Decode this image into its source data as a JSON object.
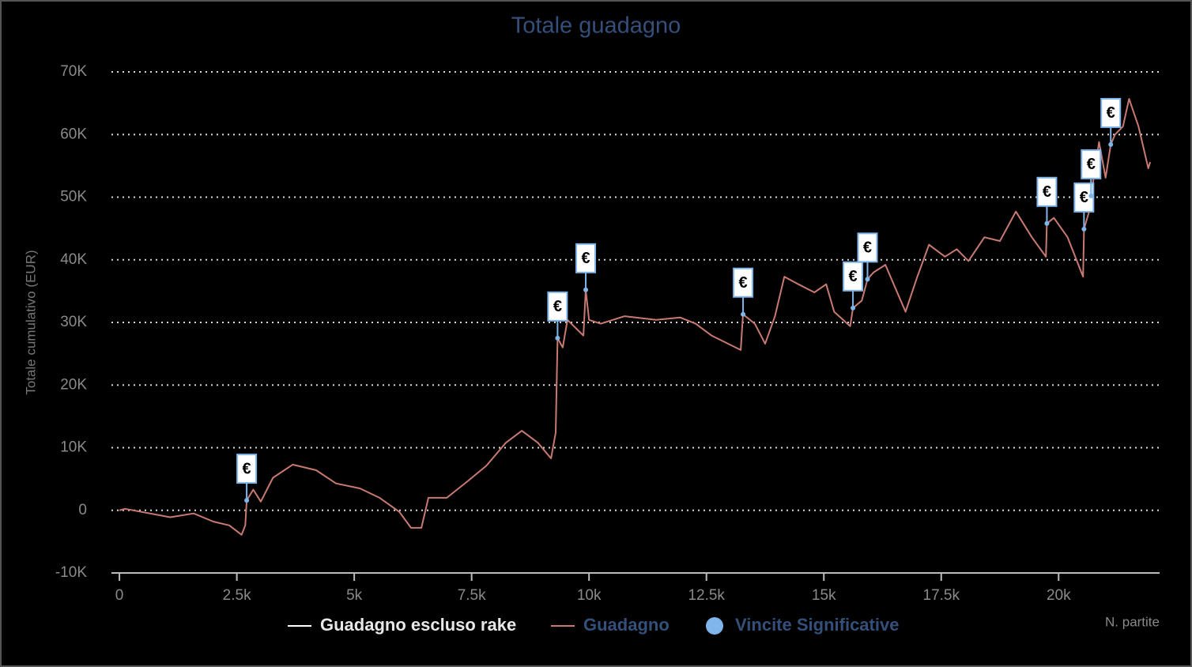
{
  "chart_data": {
    "type": "line",
    "title": "Totale guadagno",
    "y_label": "Totale cumulativo (EUR)",
    "x_label": "N. partite",
    "xlim": [
      -170,
      22150
    ],
    "ylim": [
      -10000,
      70000
    ],
    "xticks": [
      0,
      {
        "value": 2500,
        "label": "2.5k"
      },
      {
        "value": 5000,
        "label": "5k"
      },
      {
        "value": 7500,
        "label": "7.5k"
      },
      {
        "value": 10000,
        "label": "10k"
      },
      {
        "value": 12500,
        "label": "12.5k"
      },
      {
        "value": 15000,
        "label": "15k"
      },
      {
        "value": 17500,
        "label": "17.5k"
      },
      {
        "value": 20000,
        "label": "20k"
      }
    ],
    "yticks": [
      {
        "value": -10000,
        "label": "-10K"
      },
      0,
      {
        "value": 10000,
        "label": "10K"
      },
      {
        "value": 20000,
        "label": "20K"
      },
      {
        "value": 30000,
        "label": "30K"
      },
      {
        "value": 40000,
        "label": "40K"
      },
      {
        "value": 50000,
        "label": "50K"
      },
      {
        "value": 60000,
        "label": "60K"
      },
      {
        "value": 70000,
        "label": "70K"
      }
    ],
    "grid": true,
    "series": [
      {
        "name": "Guadagno escluso rake",
        "color": "#ffffff",
        "hidden": true
      },
      {
        "name": "Guadagno",
        "color": "#c87a72",
        "x": [
          0,
          120,
          1080,
          1580,
          2000,
          2340,
          2600,
          2680,
          2710,
          2850,
          3010,
          3270,
          3690,
          4190,
          4610,
          5120,
          5540,
          5960,
          6210,
          6430,
          6580,
          6970,
          7390,
          7810,
          8230,
          8570,
          8910,
          9190,
          9290,
          9330,
          9440,
          9540,
          9880,
          9930,
          10000,
          10250,
          10760,
          11430,
          11940,
          12270,
          12610,
          13230,
          13280,
          13530,
          13750,
          13960,
          14160,
          14460,
          14800,
          15050,
          15220,
          15560,
          15620,
          15810,
          15930,
          16060,
          16310,
          16740,
          16990,
          17240,
          17580,
          17830,
          18080,
          18420,
          18750,
          19090,
          19430,
          19730,
          19750,
          19900,
          20190,
          20520,
          20540,
          20660,
          20690,
          20860,
          21000,
          21110,
          21200,
          21370,
          21500,
          21700,
          21910,
          21950
        ],
        "values": [
          0,
          250,
          -1100,
          -500,
          -1800,
          -2400,
          -3900,
          -2400,
          1600,
          3300,
          1400,
          5200,
          7300,
          6400,
          4300,
          3500,
          2000,
          -250,
          -2800,
          -2800,
          2000,
          2000,
          4500,
          7100,
          10800,
          12700,
          10800,
          8300,
          12400,
          27500,
          26000,
          30400,
          27900,
          35200,
          30400,
          29800,
          31000,
          30400,
          30800,
          29800,
          27900,
          25600,
          31300,
          29800,
          26600,
          31000,
          37300,
          36100,
          34800,
          36100,
          31700,
          29400,
          32300,
          33500,
          36900,
          38000,
          39200,
          31700,
          37300,
          42400,
          40500,
          41700,
          39800,
          43600,
          43000,
          47700,
          43600,
          40500,
          45800,
          46700,
          43600,
          37300,
          44900,
          48000,
          50200,
          58800,
          53100,
          58400,
          60000,
          61300,
          65700,
          61300,
          54600,
          55600
        ]
      },
      {
        "name": "Vincite Significative",
        "color": "#7fb5ea",
        "type": "scatter",
        "marker_label": "€",
        "x": [
          2710,
          9330,
          9930,
          13280,
          15620,
          15930,
          19750,
          20540,
          20690,
          21110
        ],
        "values": [
          1600,
          27500,
          35200,
          31300,
          32300,
          36900,
          45800,
          44900,
          50200,
          58400
        ]
      }
    ]
  }
}
